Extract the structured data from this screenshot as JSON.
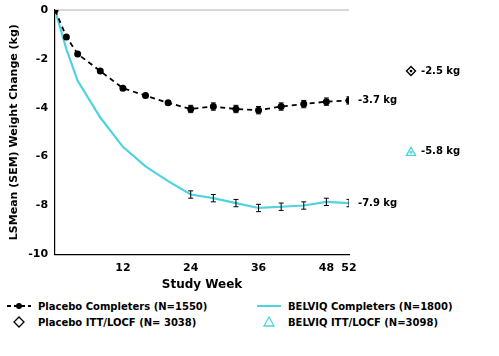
{
  "chart_data": {
    "type": "line",
    "x_label": "Study Week",
    "y_label": "LSMean (SEM) Weight Change (kg)",
    "x": [
      0,
      2,
      4,
      8,
      12,
      16,
      20,
      24,
      28,
      32,
      36,
      40,
      44,
      48,
      52
    ],
    "series": [
      {
        "name": "Placebo Completers (N=1550)",
        "color": "#000000",
        "marker": "circle",
        "line_style": "dashed",
        "values": [
          0,
          -1.1,
          -1.8,
          -2.5,
          -3.2,
          -3.5,
          -3.8,
          -4.05,
          -3.95,
          -4.05,
          -4.1,
          -3.95,
          -3.85,
          -3.75,
          -3.7
        ],
        "errors": [
          null,
          null,
          null,
          null,
          null,
          null,
          null,
          0.15,
          0.15,
          0.15,
          0.15,
          0.15,
          0.15,
          0.15,
          0.15
        ]
      },
      {
        "name": "BELVIQ Completers (N=1800)",
        "color": "#4fd3e0",
        "marker": "none",
        "line_style": "solid",
        "values": [
          0,
          -1.6,
          -2.9,
          -4.4,
          -5.6,
          -6.4,
          -7.0,
          -7.55,
          -7.7,
          -7.9,
          -8.1,
          -8.05,
          -8.0,
          -7.85,
          -7.9
        ],
        "errors": [
          null,
          null,
          null,
          null,
          null,
          null,
          null,
          0.15,
          0.15,
          0.15,
          0.15,
          0.15,
          0.15,
          0.15,
          0.15
        ]
      }
    ],
    "itt": [
      {
        "name": "Placebo ITT/LOCF (N= 3038)",
        "color": "#000000",
        "marker": "diamond",
        "value": -2.5,
        "label": "-2.5 kg"
      },
      {
        "name": "BELVIQ ITT/LOCF (N=3098)",
        "color": "#4fd3e0",
        "marker": "triangle",
        "value": -5.8,
        "label": "-5.8 kg"
      }
    ],
    "annotations": [
      {
        "text": "-3.7 kg",
        "x": 52,
        "y": -3.7
      },
      {
        "text": "-7.9 kg",
        "x": 52,
        "y": -7.9
      }
    ],
    "xlim": [
      0,
      52
    ],
    "xticks": [
      12,
      24,
      36,
      48,
      52
    ],
    "ylim": [
      -10,
      0
    ],
    "yticks": [
      -10,
      -8,
      -6,
      -4,
      -2,
      0
    ],
    "grid": false,
    "legend": "bottom"
  }
}
